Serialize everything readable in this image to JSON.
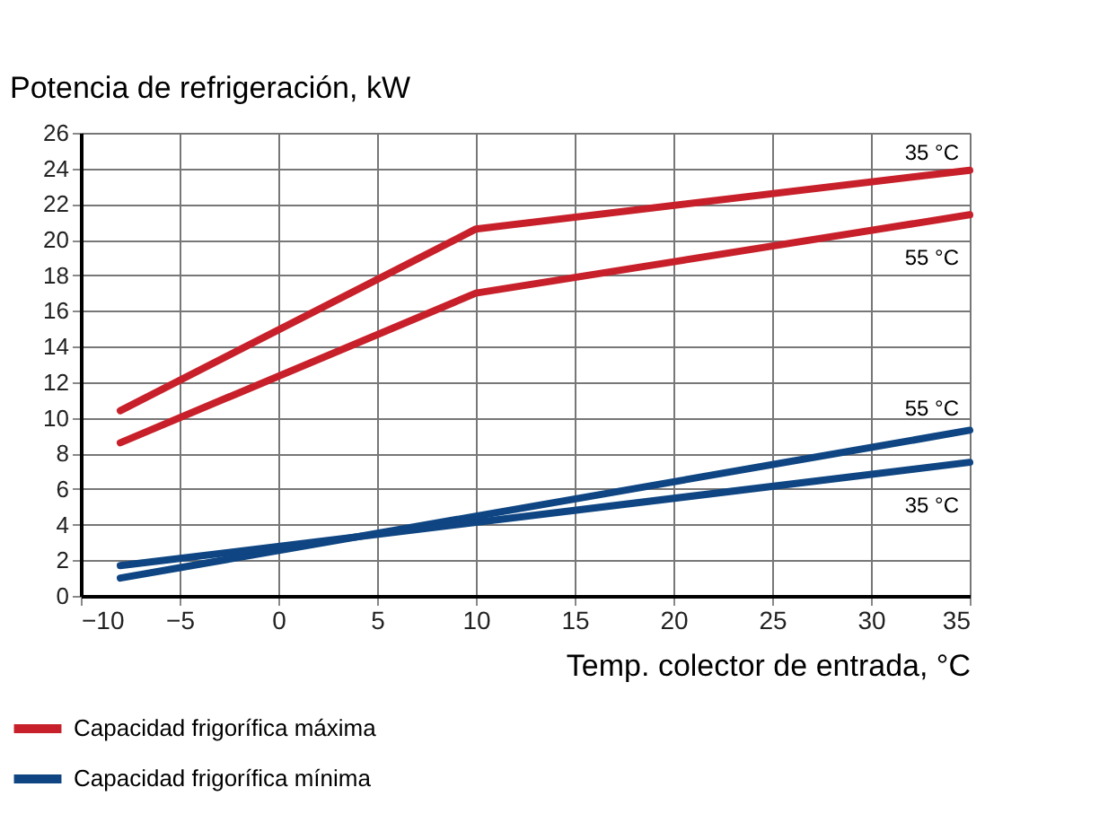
{
  "chart_data": {
    "type": "line",
    "ylabel": "Potencia de refrigeración, kW",
    "xlabel": "Temp. colector de entrada, °C",
    "xlim": [
      -10,
      35
    ],
    "xticks": [
      -10,
      -5,
      0,
      5,
      10,
      15,
      20,
      25,
      30,
      35
    ],
    "ylim": [
      0,
      26
    ],
    "yticks": [
      0,
      2,
      4,
      6,
      8,
      10,
      12,
      14,
      16,
      18,
      20,
      22,
      24,
      26
    ],
    "grid": true,
    "legend": "bottom left",
    "marker": "none",
    "line_style": "solid",
    "series": [
      {
        "name": "Capacidad frigorífica máxima",
        "color": "#c8202a",
        "x": [
          -8,
          10,
          35
        ],
        "values": [
          10.4,
          20.6,
          23.9
        ]
      },
      {
        "color": "#c8202a",
        "x": [
          -8,
          10,
          35
        ],
        "values": [
          8.6,
          17.0,
          21.4
        ]
      },
      {
        "name": "Capacidad frigorífica mínima",
        "color": "#0e4582",
        "x": [
          -8,
          35
        ],
        "values": [
          1.0,
          9.3
        ]
      },
      {
        "color": "#0e4582",
        "x": [
          -8,
          35
        ],
        "values": [
          1.7,
          7.5
        ]
      }
    ],
    "annotations": [
      "35 °C",
      "55 °C",
      "55 °C",
      "35 °C"
    ]
  }
}
